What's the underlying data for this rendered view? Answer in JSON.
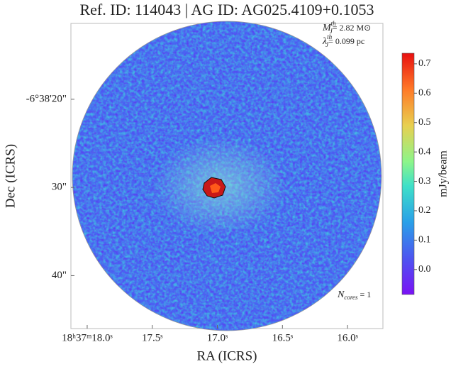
{
  "chart_data": {
    "type": "image",
    "title": "Ref. ID: 114043 | AG ID: AG025.4109+0.1053",
    "annotations": [
      {
        "symbol": "M",
        "sub": "J",
        "sup": "th",
        "text": "= 2.82 M⊙"
      },
      {
        "symbol": "λ",
        "sub": "J",
        "sup": "th",
        "text": "= 0.099 pc"
      },
      {
        "symbol": "N",
        "sub": "cores",
        "text": " = 1"
      }
    ],
    "xlabel": "RA (ICRS)",
    "ylabel": "Dec (ICRS)",
    "xlim": [
      18.125,
      15.728
    ],
    "xticks": [
      {
        "value": 18.0,
        "label": "18ʰ37ᵐ18.0ˢ"
      },
      {
        "value": 17.5,
        "label": "17.5ˢ"
      },
      {
        "value": 17.0,
        "label": "17.0ˢ"
      },
      {
        "value": 16.5,
        "label": "16.5ˢ"
      },
      {
        "value": 16.0,
        "label": "16.0ˢ"
      }
    ],
    "ylim": [
      11.4,
      46.0
    ],
    "yticks": [
      {
        "value": 20,
        "label": "-6°38'20\""
      },
      {
        "value": 30,
        "label": "30\""
      },
      {
        "value": 40,
        "label": "40\""
      }
    ],
    "colorbar": {
      "label": "mJy/beam",
      "clim": [
        -0.085,
        0.736
      ],
      "ticks": [
        {
          "value": 0,
          "label": "0.0"
        },
        0.1,
        0.2,
        0.3,
        0.4,
        0.5,
        0.6,
        0.7
      ]
    }
  }
}
